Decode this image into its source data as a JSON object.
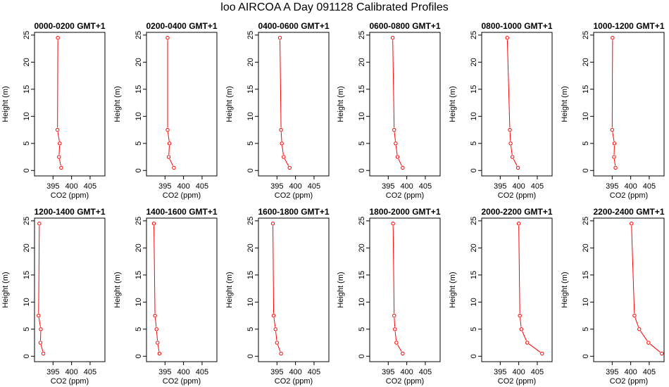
{
  "page": {
    "title": "loo AIRCOA A  Day 091128  Calibrated Profiles"
  },
  "style": {
    "axis_color": "#000000",
    "profile_color": "#ff0000"
  },
  "chart_data": [
    {
      "type": "line",
      "title": "0000-0200 GMT+1",
      "xlabel": "CO2 (ppm)",
      "ylabel": "Height (m)",
      "xlim": [
        390,
        409
      ],
      "ylim": [
        -1,
        25.5
      ],
      "xticks": [
        395,
        400,
        405
      ],
      "yticks": [
        0,
        5,
        10,
        15,
        20,
        25
      ],
      "grid": false,
      "series": [
        {
          "x": [
            397.2,
            396.6,
            396.8,
            396.2,
            396.3
          ],
          "y": [
            0.5,
            2.5,
            5,
            7.5,
            24.5
          ]
        }
      ]
    },
    {
      "type": "line",
      "title": "0200-0400 GMT+1",
      "xlabel": "CO2 (ppm)",
      "ylabel": "Height (m)",
      "xlim": [
        390,
        409
      ],
      "ylim": [
        -1,
        25.5
      ],
      "xticks": [
        395,
        400,
        405
      ],
      "yticks": [
        0,
        5,
        10,
        15,
        20,
        25
      ],
      "grid": false,
      "series": [
        {
          "x": [
            397.4,
            396.0,
            396.2,
            395.7,
            395.7
          ],
          "y": [
            0.5,
            2.5,
            5,
            7.5,
            24.5
          ]
        }
      ]
    },
    {
      "type": "line",
      "title": "0400-0600 GMT+1",
      "xlabel": "CO2 (ppm)",
      "ylabel": "Height (m)",
      "xlim": [
        390,
        409
      ],
      "ylim": [
        -1,
        25.5
      ],
      "xticks": [
        395,
        400,
        405
      ],
      "yticks": [
        0,
        5,
        10,
        15,
        20,
        25
      ],
      "grid": false,
      "series": [
        {
          "x": [
            398.4,
            396.8,
            396.3,
            396.1,
            395.8
          ],
          "y": [
            0.5,
            2.5,
            5,
            7.5,
            24.5
          ]
        }
      ]
    },
    {
      "type": "line",
      "title": "0600-0800 GMT+1",
      "xlabel": "CO2 (ppm)",
      "ylabel": "Height (m)",
      "xlim": [
        390,
        409
      ],
      "ylim": [
        -1,
        25.5
      ],
      "xticks": [
        395,
        400,
        405
      ],
      "yticks": [
        0,
        5,
        10,
        15,
        20,
        25
      ],
      "grid": false,
      "series": [
        {
          "x": [
            398.9,
            397.5,
            397.0,
            396.6,
            396.2
          ],
          "y": [
            0.5,
            2.5,
            5,
            7.5,
            24.5
          ]
        }
      ]
    },
    {
      "type": "line",
      "title": "0800-1000 GMT+1",
      "xlabel": "CO2 (ppm)",
      "ylabel": "Height (m)",
      "xlim": [
        390,
        409
      ],
      "ylim": [
        -1,
        25.5
      ],
      "xticks": [
        395,
        400,
        405
      ],
      "yticks": [
        0,
        5,
        10,
        15,
        20,
        25
      ],
      "grid": false,
      "series": [
        {
          "x": [
            399.8,
            398.3,
            397.8,
            397.6,
            396.9
          ],
          "y": [
            0.5,
            2.5,
            5,
            7.5,
            24.5
          ]
        }
      ]
    },
    {
      "type": "line",
      "title": "1000-1200 GMT+1",
      "xlabel": "CO2 (ppm)",
      "ylabel": "Height (m)",
      "xlim": [
        390,
        409
      ],
      "ylim": [
        -1,
        25.5
      ],
      "xticks": [
        395,
        400,
        405
      ],
      "yticks": [
        0,
        5,
        10,
        15,
        20,
        25
      ],
      "grid": false,
      "series": [
        {
          "x": [
            395.9,
            395.5,
            395.6,
            395.0,
            395.1
          ],
          "y": [
            0.5,
            2.5,
            5,
            7.5,
            24.5
          ]
        }
      ]
    },
    {
      "type": "line",
      "title": "1200-1400 GMT+1",
      "xlabel": "CO2 (ppm)",
      "ylabel": "Height (m)",
      "xlim": [
        390,
        409
      ],
      "ylim": [
        -1,
        25.5
      ],
      "xticks": [
        395,
        400,
        405
      ],
      "yticks": [
        0,
        5,
        10,
        15,
        20,
        25
      ],
      "grid": false,
      "series": [
        {
          "x": [
            392.4,
            391.6,
            391.7,
            391.1,
            391.3
          ],
          "y": [
            0.5,
            2.5,
            5,
            7.5,
            24.5
          ]
        }
      ]
    },
    {
      "type": "line",
      "title": "1400-1600 GMT+1",
      "xlabel": "CO2 (ppm)",
      "ylabel": "Height (m)",
      "xlim": [
        390,
        409
      ],
      "ylim": [
        -1,
        25.5
      ],
      "xticks": [
        395,
        400,
        405
      ],
      "yticks": [
        0,
        5,
        10,
        15,
        20,
        25
      ],
      "grid": false,
      "series": [
        {
          "x": [
            393.5,
            393.0,
            392.7,
            392.3,
            392.0
          ],
          "y": [
            0.5,
            2.5,
            5,
            7.5,
            24.5
          ]
        }
      ]
    },
    {
      "type": "line",
      "title": "1600-1800 GMT+1",
      "xlabel": "CO2 (ppm)",
      "ylabel": "Height (m)",
      "xlim": [
        390,
        409
      ],
      "ylim": [
        -1,
        25.5
      ],
      "xticks": [
        395,
        400,
        405
      ],
      "yticks": [
        0,
        5,
        10,
        15,
        20,
        25
      ],
      "grid": false,
      "series": [
        {
          "x": [
            396.1,
            395.0,
            394.6,
            394.1,
            393.9
          ],
          "y": [
            0.5,
            2.5,
            5,
            7.5,
            24.5
          ]
        }
      ]
    },
    {
      "type": "line",
      "title": "1800-2000 GMT+1",
      "xlabel": "CO2 (ppm)",
      "ylabel": "Height (m)",
      "xlim": [
        390,
        409
      ],
      "ylim": [
        -1,
        25.5
      ],
      "xticks": [
        395,
        400,
        405
      ],
      "yticks": [
        0,
        5,
        10,
        15,
        20,
        25
      ],
      "grid": false,
      "series": [
        {
          "x": [
            398.9,
            397.2,
            396.8,
            396.6,
            396.3
          ],
          "y": [
            0.5,
            2.5,
            5,
            7.5,
            24.5
          ]
        }
      ]
    },
    {
      "type": "line",
      "title": "2000-2200 GMT+1",
      "xlabel": "CO2 (ppm)",
      "ylabel": "Height (m)",
      "xlim": [
        390,
        409
      ],
      "ylim": [
        -1,
        25.5
      ],
      "xticks": [
        395,
        400,
        405
      ],
      "yticks": [
        0,
        5,
        10,
        15,
        20,
        25
      ],
      "grid": false,
      "series": [
        {
          "x": [
            406.3,
            402.3,
            400.7,
            400.3,
            400.0
          ],
          "y": [
            0.5,
            2.5,
            5,
            7.5,
            24.5
          ]
        }
      ]
    },
    {
      "type": "line",
      "title": "2200-2400 GMT+1",
      "xlabel": "CO2 (ppm)",
      "ylabel": "Height (m)",
      "xlim": [
        390,
        409
      ],
      "ylim": [
        -1,
        25.5
      ],
      "xticks": [
        395,
        400,
        405
      ],
      "yticks": [
        0,
        5,
        10,
        15,
        20,
        25
      ],
      "grid": false,
      "series": [
        {
          "x": [
            408.4,
            404.8,
            402.3,
            401.0,
            400.2
          ],
          "y": [
            0.5,
            2.5,
            5,
            7.5,
            24.5
          ]
        }
      ]
    }
  ]
}
